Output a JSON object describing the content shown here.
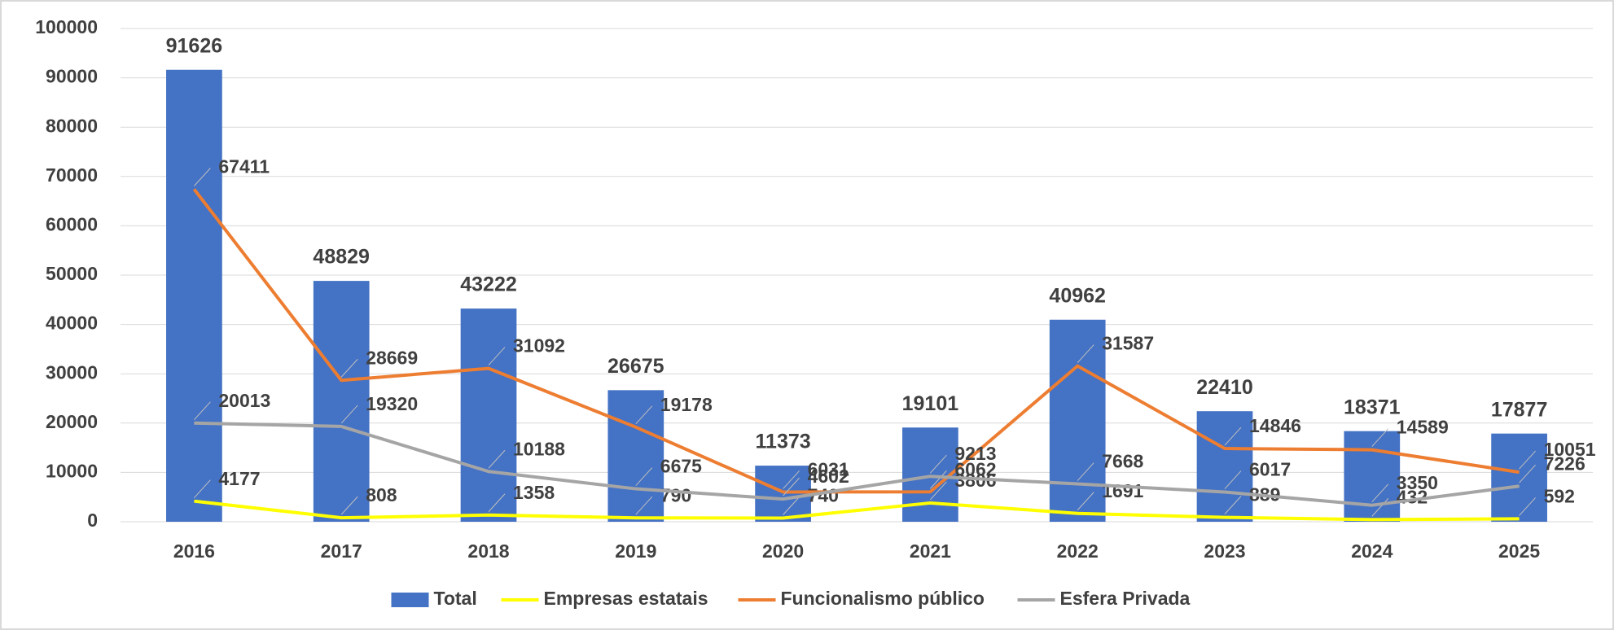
{
  "chart_data": {
    "type": "bar",
    "categories": [
      "2016",
      "2017",
      "2018",
      "2019",
      "2020",
      "2021",
      "2022",
      "2023",
      "2024",
      "2025"
    ],
    "series": [
      {
        "name": "Total",
        "type": "bar",
        "color": "#4472c4",
        "values": [
          91626,
          48829,
          43222,
          26675,
          11373,
          19101,
          40962,
          22410,
          18371,
          17877
        ]
      },
      {
        "name": "Empresas estatais",
        "type": "line",
        "color": "#ffff00",
        "values": [
          4177,
          808,
          1358,
          790,
          740,
          3806,
          1691,
          889,
          432,
          592
        ]
      },
      {
        "name": "Funcionalismo público",
        "type": "line",
        "color": "#ed7d31",
        "values": [
          67411,
          28669,
          31092,
          19178,
          6031,
          6062,
          31587,
          14846,
          14589,
          10051
        ]
      },
      {
        "name": "Esfera Privada",
        "type": "line",
        "color": "#a5a5a5",
        "values": [
          20013,
          19320,
          10188,
          6675,
          4602,
          9213,
          7668,
          6017,
          3350,
          7226
        ]
      }
    ],
    "ylim": [
      0,
      100000
    ],
    "yticks": [
      0,
      10000,
      20000,
      30000,
      40000,
      50000,
      60000,
      70000,
      80000,
      90000,
      100000
    ],
    "grid": true,
    "legend": "bottom"
  }
}
